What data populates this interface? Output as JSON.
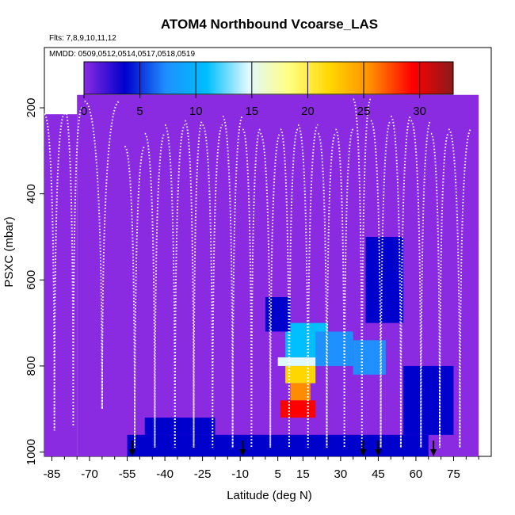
{
  "chart_data": {
    "type": "heatmap",
    "title": "ATOM4 Northbound Vcoarse_LAS",
    "flights_label": "Flts: 7,8,9,10,11,12",
    "dates_label": "MMDD: 0509,0512,0514,0517,0518,0519",
    "xlabel": "Latitude (deg N)",
    "ylabel": "PSXC (mbar)",
    "xlim": [
      -88,
      90
    ],
    "ylim": [
      1010,
      60
    ],
    "x_ticks": [
      -85,
      -70,
      -55,
      -40,
      -25,
      -10,
      5,
      15,
      30,
      45,
      60,
      75
    ],
    "y_ticks": [
      200,
      400,
      600,
      800,
      1000
    ],
    "colorbar": {
      "min": 0,
      "max": 33,
      "ticks": [
        0,
        5,
        10,
        15,
        20,
        25,
        30
      ],
      "colors": [
        "#8a2be2",
        "#0000cd",
        "#1e90ff",
        "#00bfff",
        "#e0f8ff",
        "#ffff80",
        "#ffd700",
        "#ff8c00",
        "#ff0000",
        "#8b1a1a"
      ]
    },
    "background_fill": {
      "value": 0,
      "regions": [
        {
          "lat": [
            -88,
            -75
          ],
          "p": [
            215,
            1010
          ]
        },
        {
          "lat": [
            -75,
            85
          ],
          "p": [
            170,
            1010
          ]
        }
      ]
    },
    "cells": [
      {
        "lat": [
          5,
          25
        ],
        "p": [
          780,
          800
        ],
        "value": 16
      },
      {
        "lat": [
          8,
          20
        ],
        "p": [
          800,
          840
        ],
        "value": 21
      },
      {
        "lat": [
          10,
          18
        ],
        "p": [
          840,
          880
        ],
        "value": 26
      },
      {
        "lat": [
          6,
          20
        ],
        "p": [
          880,
          920
        ],
        "value": 30
      },
      {
        "lat": [
          8,
          25
        ],
        "p": [
          700,
          780
        ],
        "value": 12
      },
      {
        "lat": [
          20,
          35
        ],
        "p": [
          720,
          800
        ],
        "value": 8
      },
      {
        "lat": [
          35,
          48
        ],
        "p": [
          740,
          820
        ],
        "value": 6
      },
      {
        "lat": [
          -55,
          65
        ],
        "p": [
          960,
          1010
        ],
        "value": 5
      },
      {
        "lat": [
          -48,
          -20
        ],
        "p": [
          920,
          960
        ],
        "value": 4
      },
      {
        "lat": [
          40,
          55
        ],
        "p": [
          500,
          700
        ],
        "value": 3
      },
      {
        "lat": [
          55,
          75
        ],
        "p": [
          800,
          960
        ],
        "value": 4
      },
      {
        "lat": [
          0,
          10
        ],
        "p": [
          640,
          720
        ],
        "value": 3
      }
    ],
    "profiles": [
      {
        "lat_start": -88,
        "lat_end": -80,
        "p_top": 215,
        "p_bottom": 950
      },
      {
        "lat_start": -80,
        "lat_end": -73,
        "p_top": 200,
        "p_bottom": 940
      },
      {
        "lat_start": -72,
        "lat_end": -58,
        "p_top": 185,
        "p_bottom": 900
      },
      {
        "lat_start": -56,
        "lat_end": -48,
        "p_top": 290,
        "p_bottom": 990
      },
      {
        "lat_start": -48,
        "lat_end": -40,
        "p_top": 260,
        "p_bottom": 990
      },
      {
        "lat_start": -40,
        "lat_end": -32,
        "p_top": 240,
        "p_bottom": 990
      },
      {
        "lat_start": -32,
        "lat_end": -25,
        "p_top": 230,
        "p_bottom": 990
      },
      {
        "lat_start": -25,
        "lat_end": -17,
        "p_top": 240,
        "p_bottom": 990
      },
      {
        "lat_start": -17,
        "lat_end": -9,
        "p_top": 220,
        "p_bottom": 990
      },
      {
        "lat_start": -9,
        "lat_end": -2,
        "p_top": 250,
        "p_bottom": 990
      },
      {
        "lat_start": -2,
        "lat_end": 6,
        "p_top": 260,
        "p_bottom": 990
      },
      {
        "lat_start": 6,
        "lat_end": 13,
        "p_top": 250,
        "p_bottom": 990
      },
      {
        "lat_start": 13,
        "lat_end": 21,
        "p_top": 240,
        "p_bottom": 990
      },
      {
        "lat_start": 21,
        "lat_end": 28,
        "p_top": 260,
        "p_bottom": 990
      },
      {
        "lat_start": 28,
        "lat_end": 35,
        "p_top": 250,
        "p_bottom": 990
      },
      {
        "lat_start": 35,
        "lat_end": 42,
        "p_top": 180,
        "p_bottom": 990
      },
      {
        "lat_start": 42,
        "lat_end": 50,
        "p_top": 230,
        "p_bottom": 990
      },
      {
        "lat_start": 50,
        "lat_end": 58,
        "p_top": 220,
        "p_bottom": 990
      },
      {
        "lat_start": 58,
        "lat_end": 66,
        "p_top": 230,
        "p_bottom": 990
      },
      {
        "lat_start": 66,
        "lat_end": 73,
        "p_top": 260,
        "p_bottom": 990
      },
      {
        "lat_start": 73,
        "lat_end": 82,
        "p_top": 250,
        "p_bottom": 990
      }
    ],
    "arrow_lats": [
      -53,
      -9,
      39,
      45,
      67
    ]
  }
}
